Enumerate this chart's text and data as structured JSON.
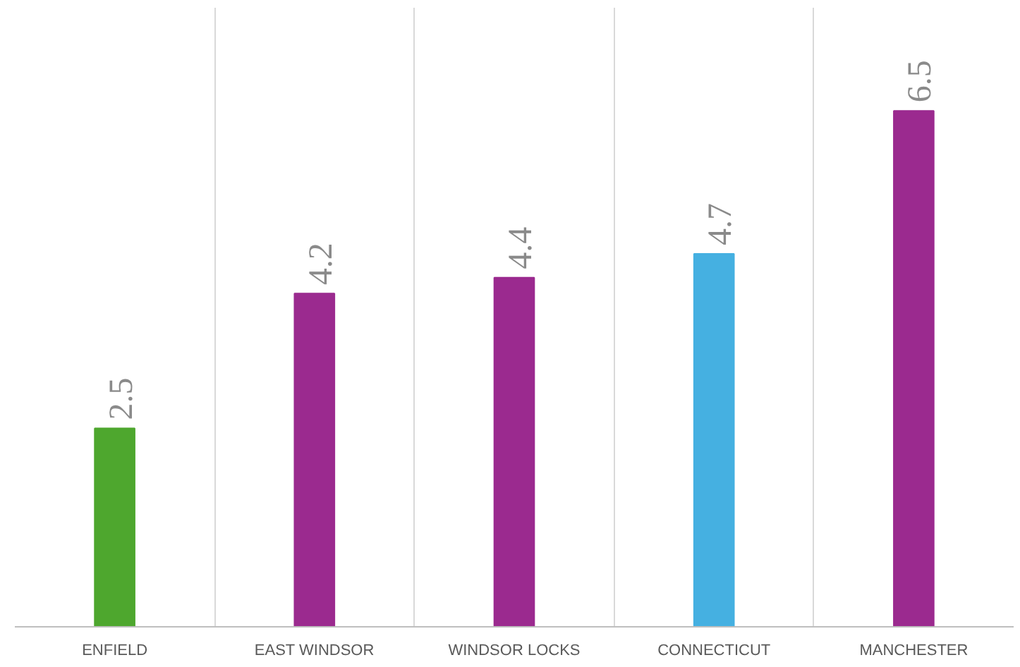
{
  "chart_data": {
    "type": "bar",
    "categories": [
      "ENFIELD",
      "EAST WINDSOR",
      "WINDSOR LOCKS",
      "CONNECTICUT",
      "MANCHESTER"
    ],
    "values": [
      2.5,
      4.2,
      4.4,
      4.7,
      6.5
    ],
    "colors": [
      "#4ea72e",
      "#9b2a8f",
      "#9b2a8f",
      "#45b0e1",
      "#9b2a8f"
    ],
    "data_labels": true,
    "grid": "x"
  }
}
